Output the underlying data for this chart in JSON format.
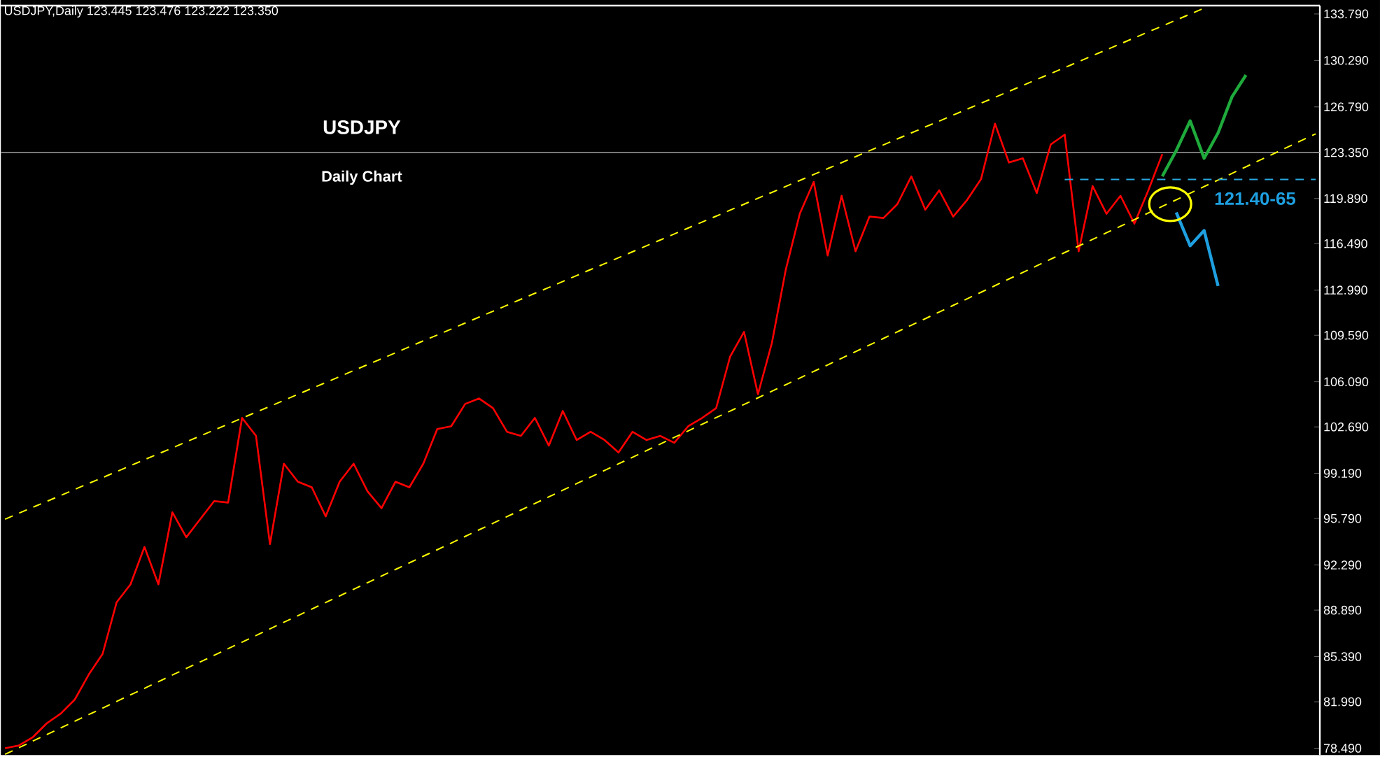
{
  "chart_data": {
    "type": "line",
    "title": "USDJPY",
    "subtitle": "Daily Chart",
    "annotations": [
      "USDJPY,Daily  123.445 123.476 123.222 123.350",
      "121.40-65"
    ],
    "categories": [
      null,
      null,
      null,
      null,
      null,
      null,
      null,
      null,
      null,
      null,
      null,
      null,
      null,
      null,
      null,
      null,
      null,
      null,
      null,
      null,
      null,
      null,
      null,
      null,
      null,
      null,
      null,
      null,
      null,
      null,
      null,
      null,
      null,
      null,
      null,
      null,
      null,
      null,
      null,
      null,
      null,
      null,
      null,
      null,
      null,
      null,
      null,
      null,
      null,
      null,
      null,
      null,
      null,
      null,
      null,
      null,
      null,
      null,
      null,
      null,
      null,
      null,
      null,
      null,
      null,
      null,
      null,
      null,
      null,
      null,
      null,
      null,
      null,
      null,
      null,
      null,
      null,
      null,
      null,
      null,
      null,
      null,
      null,
      null,
      null,
      null,
      null,
      null,
      null,
      null,
      null,
      null,
      null,
      null,
      null
    ],
    "ylim": [
      77.97,
      134.42
    ],
    "tick_labels": "y",
    "yticks": [
      {
        "value": 78.49,
        "label": "78.490"
      },
      {
        "value": 81.99,
        "label": "81.990"
      },
      {
        "value": 85.39,
        "label": "85.390"
      },
      {
        "value": 88.89,
        "label": "88.890"
      },
      {
        "value": 92.29,
        "label": "92.290"
      },
      {
        "value": 95.79,
        "label": "95.790"
      },
      {
        "value": 99.19,
        "label": "99.190"
      },
      {
        "value": 102.69,
        "label": "102.690"
      },
      {
        "value": 106.09,
        "label": "106.090"
      },
      {
        "value": 109.59,
        "label": "109.590"
      },
      {
        "value": 112.99,
        "label": "112.990"
      },
      {
        "value": 116.49,
        "label": "116.490"
      },
      {
        "value": 119.89,
        "label": "119.890"
      },
      {
        "value": 123.35,
        "label": "123.350"
      },
      {
        "value": 126.79,
        "label": "126.790"
      },
      {
        "value": 130.29,
        "label": "130.290"
      },
      {
        "value": 133.79,
        "label": "133.790"
      }
    ],
    "ref_lines": [
      {
        "axis": "y",
        "value": 123.35,
        "color": "#a0a0a0",
        "line_style": "solid"
      }
    ],
    "series": [
      {
        "color": "#ff0000",
        "line_style": "solid",
        "values": [
          78.49,
          78.7,
          79.33,
          80.37,
          81.1,
          82.15,
          84.03,
          85.6,
          89.47,
          90.83,
          93.65,
          90.83,
          96.26,
          94.38,
          95.74,
          97.1,
          96.99,
          103.37,
          102.01,
          93.86,
          99.92,
          98.56,
          98.14,
          95.95,
          98.56,
          99.92,
          97.83,
          96.57,
          98.56,
          98.14,
          99.92,
          102.53,
          102.74,
          104.42,
          104.83,
          104.1,
          102.32,
          102.01,
          103.37,
          101.28,
          103.89,
          101.7,
          102.32,
          101.7,
          100.76,
          102.32,
          101.7,
          102.01,
          101.49,
          102.74,
          103.37,
          104.1,
          107.97,
          109.85,
          105.15,
          109.01,
          114.55,
          118.74,
          121.14,
          115.6,
          120.1,
          115.91,
          118.53,
          118.42,
          119.47,
          121.56,
          119.05,
          120.51,
          118.53,
          119.78,
          121.35,
          125.53,
          122.6,
          122.92,
          120.3,
          123.96,
          124.7,
          115.91,
          120.83,
          118.74,
          120.1,
          118.0,
          120.51,
          123.23,
          null,
          null,
          null,
          null,
          null,
          null,
          null,
          null,
          null,
          null,
          null
        ]
      },
      {
        "color": "#ffff00",
        "line_style": "dashed",
        "values": [
          95.74,
          96.19,
          96.64,
          97.08,
          97.53,
          97.98,
          98.43,
          98.87,
          99.32,
          99.77,
          100.22,
          100.66,
          101.11,
          101.56,
          102.01,
          102.45,
          102.9,
          103.35,
          103.8,
          104.24,
          104.69,
          105.14,
          105.59,
          106.03,
          106.48,
          106.93,
          107.38,
          107.82,
          108.27,
          108.72,
          109.17,
          109.61,
          110.06,
          110.51,
          110.96,
          111.4,
          111.85,
          112.3,
          112.75,
          113.19,
          113.64,
          114.09,
          114.54,
          114.98,
          115.43,
          115.88,
          116.33,
          116.77,
          117.22,
          117.67,
          118.12,
          118.56,
          119.01,
          119.46,
          119.91,
          120.35,
          120.8,
          121.25,
          121.7,
          122.14,
          122.59,
          123.04,
          123.49,
          123.93,
          124.38,
          124.83,
          125.28,
          125.72,
          126.17,
          126.62,
          127.07,
          127.51,
          127.96,
          128.41,
          128.86,
          129.3,
          129.75,
          130.2,
          130.65,
          131.09,
          131.54,
          131.99,
          132.44,
          132.88,
          133.33,
          133.78,
          134.23,
          null,
          null,
          null,
          null,
          null,
          null,
          null,
          null
        ]
      },
      {
        "color": "#ffff00",
        "line_style": "dashed",
        "values": [
          78.03,
          78.53,
          79.03,
          79.52,
          80.02,
          80.52,
          81.02,
          81.51,
          82.01,
          82.51,
          83.0,
          83.5,
          84.0,
          84.5,
          84.99,
          85.49,
          85.99,
          86.48,
          86.98,
          87.48,
          87.98,
          88.47,
          88.97,
          89.47,
          89.96,
          90.46,
          90.96,
          91.46,
          91.95,
          92.45,
          92.95,
          93.44,
          93.94,
          94.44,
          94.94,
          95.43,
          95.93,
          96.43,
          96.92,
          97.42,
          97.92,
          98.42,
          98.91,
          99.41,
          99.91,
          100.4,
          100.9,
          101.4,
          101.9,
          102.39,
          102.89,
          103.39,
          103.88,
          104.38,
          104.88,
          105.38,
          105.87,
          106.37,
          106.87,
          107.36,
          107.86,
          108.36,
          108.86,
          109.35,
          109.85,
          110.35,
          110.84,
          111.34,
          111.84,
          112.34,
          112.83,
          113.33,
          113.83,
          114.32,
          114.82,
          115.32,
          115.82,
          116.31,
          116.81,
          117.31,
          117.8,
          118.3,
          118.8,
          119.3,
          119.79,
          120.29,
          120.79,
          121.28,
          121.78,
          122.28,
          122.78,
          123.27,
          123.77,
          124.27,
          124.76
        ]
      },
      {
        "color": "#29a8e0",
        "line_style": "dashed",
        "values": [
          null,
          null,
          null,
          null,
          null,
          null,
          null,
          null,
          null,
          null,
          null,
          null,
          null,
          null,
          null,
          null,
          null,
          null,
          null,
          null,
          null,
          null,
          null,
          null,
          null,
          null,
          null,
          null,
          null,
          null,
          null,
          null,
          null,
          null,
          null,
          null,
          null,
          null,
          null,
          null,
          null,
          null,
          null,
          null,
          null,
          null,
          null,
          null,
          null,
          null,
          null,
          null,
          null,
          null,
          null,
          null,
          null,
          null,
          null,
          null,
          null,
          null,
          null,
          null,
          null,
          null,
          null,
          null,
          null,
          null,
          null,
          null,
          null,
          null,
          null,
          null,
          121.32,
          121.32,
          121.32,
          121.32,
          121.32,
          121.32,
          121.32,
          121.32,
          121.32,
          121.32,
          121.32,
          121.32,
          121.32,
          121.32,
          121.32,
          121.32,
          121.32,
          121.32,
          121.32
        ]
      },
      {
        "color": "#1faa3c",
        "line_style": "solid",
        "values": [
          null,
          null,
          null,
          null,
          null,
          null,
          null,
          null,
          null,
          null,
          null,
          null,
          null,
          null,
          null,
          null,
          null,
          null,
          null,
          null,
          null,
          null,
          null,
          null,
          null,
          null,
          null,
          null,
          null,
          null,
          null,
          null,
          null,
          null,
          null,
          null,
          null,
          null,
          null,
          null,
          null,
          null,
          null,
          null,
          null,
          null,
          null,
          null,
          null,
          null,
          null,
          null,
          null,
          null,
          null,
          null,
          null,
          null,
          null,
          null,
          null,
          null,
          null,
          null,
          null,
          null,
          null,
          null,
          null,
          null,
          null,
          null,
          null,
          null,
          null,
          null,
          null,
          null,
          null,
          null,
          null,
          null,
          null,
          121.56,
          123.5,
          125.74,
          122.92,
          124.83,
          127.55,
          129.19,
          null,
          null,
          null,
          null,
          null
        ]
      },
      {
        "color": "#1e9fe0",
        "line_style": "solid",
        "values": [
          null,
          null,
          null,
          null,
          null,
          null,
          null,
          null,
          null,
          null,
          null,
          null,
          null,
          null,
          null,
          null,
          null,
          null,
          null,
          null,
          null,
          null,
          null,
          null,
          null,
          null,
          null,
          null,
          null,
          null,
          null,
          null,
          null,
          null,
          null,
          null,
          null,
          null,
          null,
          null,
          null,
          null,
          null,
          null,
          null,
          null,
          null,
          null,
          null,
          null,
          null,
          null,
          null,
          null,
          null,
          null,
          null,
          null,
          null,
          null,
          null,
          null,
          null,
          null,
          null,
          null,
          null,
          null,
          null,
          null,
          null,
          null,
          null,
          null,
          null,
          null,
          null,
          null,
          null,
          null,
          null,
          null,
          null,
          null,
          118.84,
          116.33,
          117.48,
          113.3,
          null,
          null,
          null,
          null,
          null,
          null,
          null
        ]
      }
    ]
  }
}
